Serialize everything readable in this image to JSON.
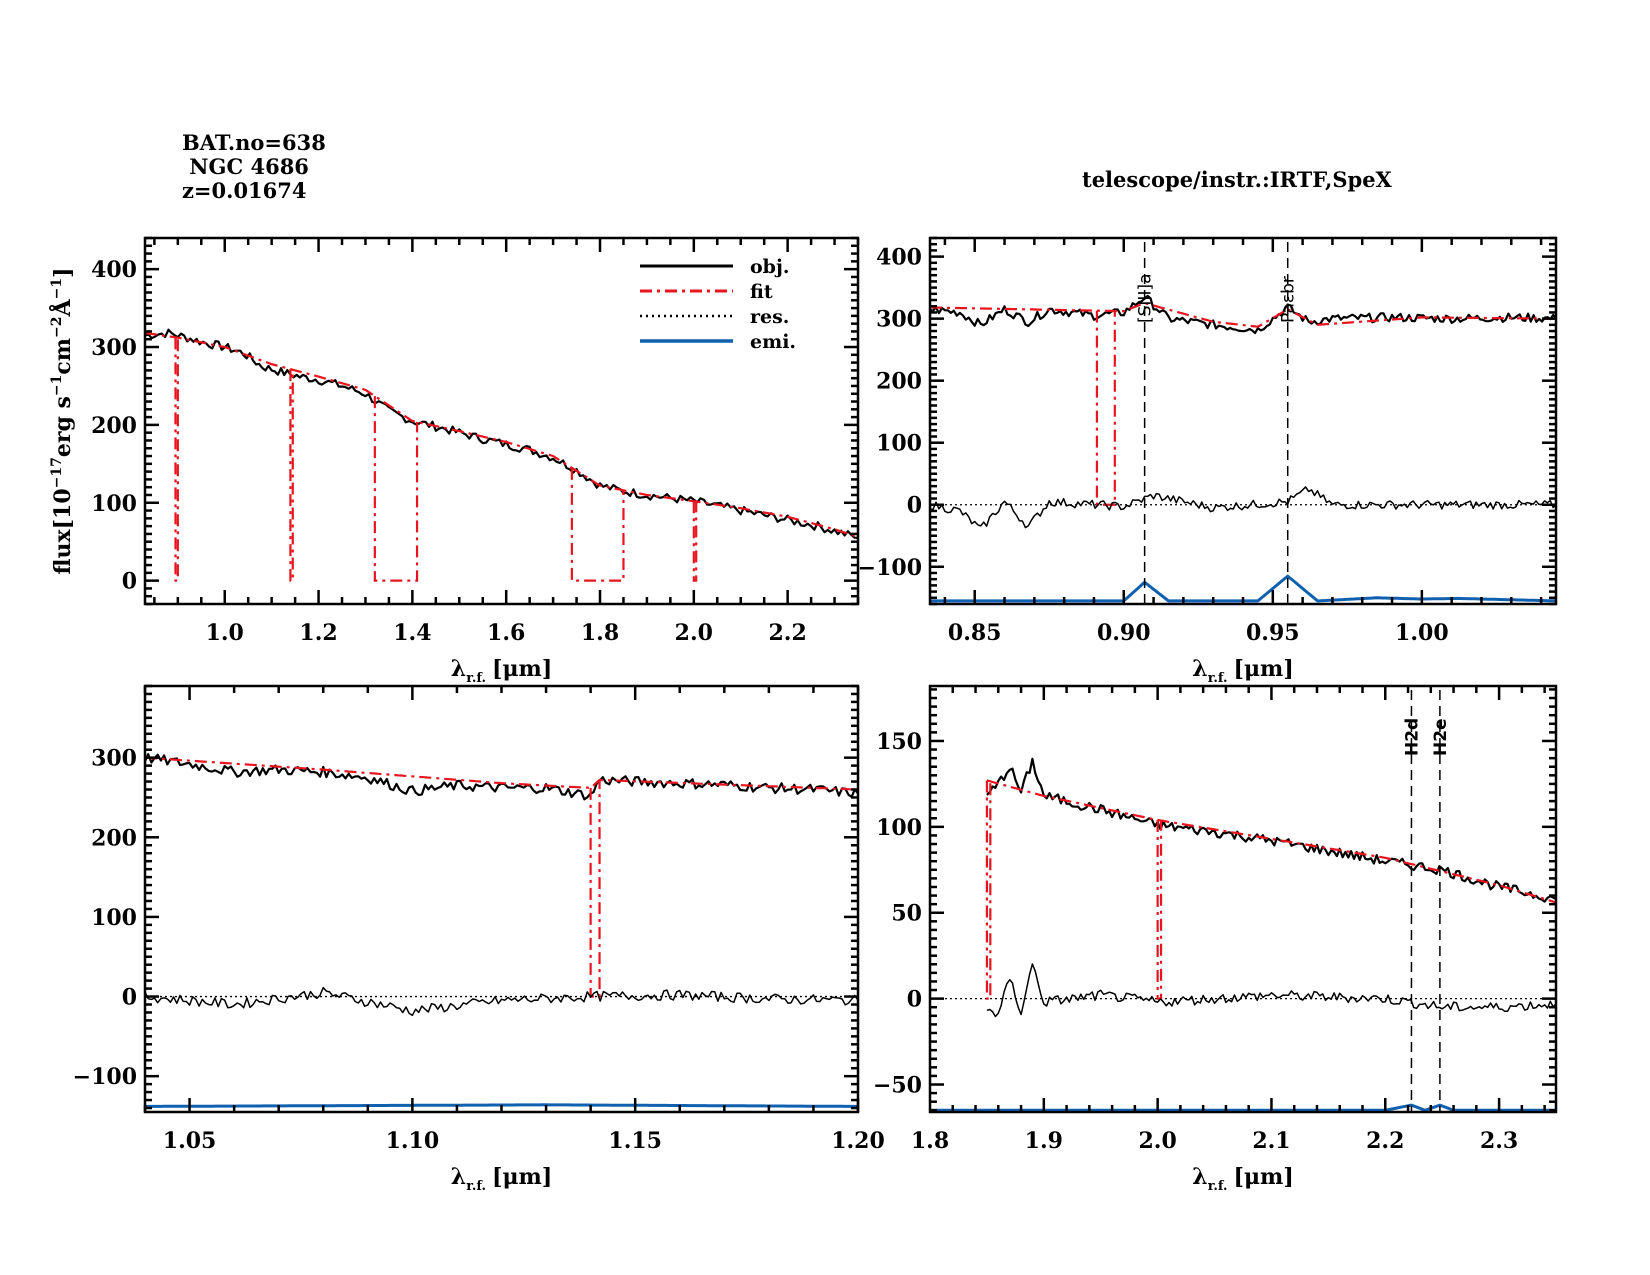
{
  "header": {
    "bat_no": "BAT.no=638",
    "name": " NGC 4686",
    "redshift": "z=0.01674",
    "telescope": "telescope/instr.:IRTF,SpeX"
  },
  "colors": {
    "obj": "#000000",
    "fit": "#e8141e",
    "res": "#000000",
    "emi": "#1060b0"
  },
  "chart_data": [
    {
      "type": "line",
      "panel": "full-spectrum",
      "xlabel": "λr.f. [μm]",
      "xlabel_main": "λ",
      "xlabel_sub": "r.f.",
      "xlabel_unit": "[μm]",
      "ylabel": "flux[10^-17erg s^-1cm^-2Å^-1]",
      "ylabel_parts": [
        "flux[10",
        "−17",
        "erg s",
        "−1",
        "cm",
        "−2",
        "Å",
        "−1",
        "]"
      ],
      "xlim": [
        0.83,
        2.35
      ],
      "ylim": [
        -30,
        440
      ],
      "xticks": [
        "1.0",
        "1.2",
        "1.4",
        "1.6",
        "1.8",
        "2.0",
        "2.2"
      ],
      "xtick_values": [
        1.0,
        1.2,
        1.4,
        1.6,
        1.8,
        2.0,
        2.2
      ],
      "yticks": [
        "0",
        "100",
        "200",
        "300",
        "400"
      ],
      "ytick_values": [
        0,
        100,
        200,
        300,
        400
      ],
      "legend": {
        "position": "top-right",
        "entries": [
          "obj.",
          "fit",
          "res.",
          "emi."
        ]
      },
      "series": [
        {
          "name": "obj.",
          "style": "solid",
          "x": [
            0.83,
            0.88,
            0.92,
            0.96,
            1.0,
            1.04,
            1.08,
            1.12,
            1.16,
            1.2,
            1.25,
            1.3,
            1.35,
            1.4,
            1.45,
            1.5,
            1.55,
            1.6,
            1.65,
            1.7,
            1.75,
            1.8,
            1.85,
            1.9,
            1.95,
            2.0,
            2.05,
            2.1,
            2.15,
            2.2,
            2.25,
            2.3,
            2.35
          ],
          "y": [
            315,
            318,
            312,
            305,
            300,
            292,
            275,
            268,
            262,
            258,
            250,
            240,
            218,
            205,
            198,
            190,
            182,
            175,
            168,
            158,
            142,
            122,
            115,
            110,
            106,
            102,
            96,
            90,
            84,
            78,
            72,
            64,
            55
          ]
        },
        {
          "name": "fit",
          "style": "dashdot",
          "x": [
            0.83,
            0.9,
            1.0,
            1.1,
            1.2,
            1.3,
            1.4,
            1.5,
            1.6,
            1.7,
            1.8,
            1.9,
            2.0,
            2.1,
            2.2,
            2.3,
            2.35
          ],
          "y": [
            318,
            312,
            300,
            278,
            262,
            245,
            205,
            192,
            178,
            160,
            122,
            110,
            102,
            93,
            82,
            66,
            56
          ],
          "gaps": [
            [
              0.895,
              0.9
            ],
            [
              1.14,
              1.145
            ],
            [
              1.32,
              1.41
            ],
            [
              1.74,
              1.85
            ],
            [
              2.0,
              2.005
            ]
          ]
        }
      ]
    },
    {
      "type": "line",
      "panel": "0.83-1.04um",
      "xlabel": "λr.f. [μm]",
      "xlabel_main": "λ",
      "xlabel_sub": "r.f.",
      "xlabel_unit": "[μm]",
      "xlim": [
        0.835,
        1.045
      ],
      "ylim": [
        -160,
        430
      ],
      "xticks": [
        "0.85",
        "0.90",
        "0.95",
        "1.00"
      ],
      "xtick_values": [
        0.85,
        0.9,
        0.95,
        1.0
      ],
      "yticks": [
        "−100",
        "0",
        "100",
        "200",
        "300",
        "400"
      ],
      "ytick_values": [
        -100,
        0,
        100,
        200,
        300,
        400
      ],
      "annotations": [
        {
          "label": "[SIII]a",
          "x": 0.907
        },
        {
          "label": "Paεbr",
          "x": 0.955
        }
      ],
      "series": [
        {
          "name": "obj.",
          "x": [
            0.835,
            0.845,
            0.852,
            0.86,
            0.868,
            0.875,
            0.89,
            0.9,
            0.907,
            0.915,
            0.93,
            0.945,
            0.955,
            0.962,
            0.97,
            0.99,
            1.01,
            1.03,
            1.045
          ],
          "y": [
            315,
            310,
            290,
            315,
            295,
            315,
            305,
            310,
            335,
            300,
            290,
            282,
            318,
            295,
            300,
            302,
            300,
            302,
            300
          ]
        },
        {
          "name": "fit",
          "x": [
            0.835,
            0.9,
            0.907,
            0.93,
            0.945,
            0.955,
            0.965,
            1.0,
            1.045
          ],
          "y": [
            318,
            312,
            325,
            295,
            287,
            315,
            290,
            302,
            300
          ],
          "gaps": [
            [
              0.891,
              0.897
            ]
          ]
        },
        {
          "name": "res.",
          "x": [
            0.835,
            0.845,
            0.852,
            0.86,
            0.868,
            0.875,
            0.9,
            0.91,
            0.93,
            0.955,
            0.962,
            0.97,
            1.0,
            1.045
          ],
          "y": [
            0,
            -10,
            -40,
            5,
            -35,
            5,
            -3,
            15,
            -5,
            5,
            25,
            0,
            0,
            0
          ]
        },
        {
          "name": "emi.",
          "x": [
            0.835,
            0.9,
            0.907,
            0.915,
            0.945,
            0.955,
            0.965,
            0.985,
            1.0,
            1.012,
            1.045
          ],
          "y": [
            -155,
            -155,
            -125,
            -155,
            -155,
            -115,
            -155,
            -150,
            -152,
            -151,
            -155
          ]
        }
      ]
    },
    {
      "type": "line",
      "panel": "1.04-1.20um",
      "xlabel": "λr.f. [μm]",
      "xlabel_main": "λ",
      "xlabel_sub": "r.f.",
      "xlabel_unit": "[μm]",
      "xlim": [
        1.04,
        1.2
      ],
      "ylim": [
        -145,
        390
      ],
      "xticks": [
        "1.05",
        "1.10",
        "1.15",
        "1.20"
      ],
      "xtick_values": [
        1.05,
        1.1,
        1.15,
        1.2
      ],
      "yticks": [
        "−100",
        "0",
        "100",
        "200",
        "300"
      ],
      "ytick_values": [
        -100,
        0,
        100,
        200,
        300
      ],
      "series": [
        {
          "name": "obj.",
          "x": [
            1.04,
            1.05,
            1.06,
            1.07,
            1.08,
            1.09,
            1.1,
            1.11,
            1.12,
            1.13,
            1.14,
            1.142,
            1.15,
            1.16,
            1.17,
            1.18,
            1.19,
            1.2
          ],
          "y": [
            300,
            292,
            282,
            285,
            282,
            275,
            258,
            265,
            262,
            262,
            252,
            272,
            270,
            268,
            266,
            262,
            260,
            255
          ]
        },
        {
          "name": "fit",
          "x": [
            1.04,
            1.08,
            1.12,
            1.14,
            1.142,
            1.2
          ],
          "y": [
            300,
            285,
            268,
            262,
            272,
            260
          ],
          "gaps": [
            [
              1.14,
              1.142
            ]
          ]
        },
        {
          "name": "res.",
          "x": [
            1.04,
            1.06,
            1.08,
            1.1,
            1.12,
            1.14,
            1.16,
            1.18,
            1.2
          ],
          "y": [
            0,
            -10,
            5,
            -18,
            -5,
            0,
            2,
            -3,
            -5
          ]
        },
        {
          "name": "emi.",
          "x": [
            1.04,
            1.084,
            1.13,
            1.2
          ],
          "y": [
            -138,
            -137,
            -136,
            -138
          ]
        }
      ]
    },
    {
      "type": "line",
      "panel": "1.80-2.35um",
      "xlabel": "λr.f. [μm]",
      "xlabel_main": "λ",
      "xlabel_sub": "r.f.",
      "xlabel_unit": "[μm]",
      "xlim": [
        1.8,
        2.35
      ],
      "ylim": [
        -66,
        182
      ],
      "xticks": [
        "1.8",
        "1.9",
        "2.0",
        "2.1",
        "2.2",
        "2.3"
      ],
      "xtick_values": [
        1.8,
        1.9,
        2.0,
        2.1,
        2.2,
        2.3
      ],
      "yticks": [
        "−50",
        "0",
        "50",
        "100",
        "150"
      ],
      "ytick_values": [
        -50,
        0,
        50,
        100,
        150
      ],
      "annotations": [
        {
          "label": "H2d",
          "x": 2.223
        },
        {
          "label": "H2e",
          "x": 2.248
        }
      ],
      "series": [
        {
          "name": "obj.",
          "x": [
            1.85,
            1.86,
            1.87,
            1.88,
            1.89,
            1.9,
            1.95,
            2.0,
            2.05,
            2.1,
            2.15,
            2.2,
            2.25,
            2.3,
            2.35
          ],
          "y": [
            118,
            125,
            135,
            120,
            138,
            118,
            110,
            101,
            97,
            92,
            86,
            80,
            75,
            65,
            58
          ]
        },
        {
          "name": "fit",
          "x": [
            1.85,
            1.9,
            2.0,
            2.1,
            2.2,
            2.3,
            2.35
          ],
          "y": [
            127,
            118,
            104,
            93,
            82,
            66,
            56
          ],
          "gaps": [
            [
              1.85,
              1.853
            ],
            [
              2.0,
              2.003
            ]
          ]
        },
        {
          "name": "res.",
          "x": [
            1.85,
            1.86,
            1.87,
            1.88,
            1.89,
            1.9,
            1.95,
            2.0,
            2.05,
            2.1,
            2.2,
            2.25,
            2.3,
            2.35
          ],
          "y": [
            -5,
            -10,
            12,
            -8,
            20,
            -2,
            2,
            -2,
            0,
            2,
            0,
            -5,
            -5,
            -3
          ]
        },
        {
          "name": "emi.",
          "x": [
            1.8,
            2.2,
            2.223,
            2.235,
            2.248,
            2.26,
            2.35
          ],
          "y": [
            -65,
            -65,
            -62,
            -65,
            -62,
            -65,
            -65
          ]
        }
      ]
    }
  ]
}
